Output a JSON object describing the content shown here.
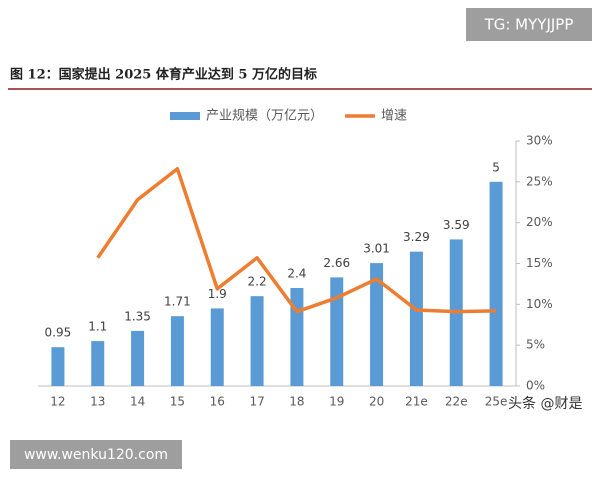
{
  "chart_data": {
    "type": "bar_line",
    "title": "图 12：国家提出 2025 体育产业达到 5 万亿的目标",
    "categories": [
      "12",
      "13",
      "14",
      "15",
      "16",
      "17",
      "18",
      "19",
      "20",
      "21e",
      "22e",
      "25e"
    ],
    "series": [
      {
        "name": "产业规模（万亿元）",
        "type": "bar",
        "color": "#5b9bd5",
        "values": [
          0.95,
          1.1,
          1.35,
          1.71,
          1.9,
          2.2,
          2.4,
          2.66,
          3.01,
          3.29,
          3.59,
          5
        ]
      },
      {
        "name": "增速",
        "type": "line",
        "axis": "y2",
        "color": "#ed7d31",
        "values": [
          null,
          15.7,
          22.8,
          26.6,
          11.9,
          15.7,
          9.1,
          10.8,
          13.1,
          9.3,
          9.1,
          9.2
        ]
      }
    ],
    "ylim": [
      0,
      6
    ],
    "y2lim": [
      0,
      30
    ],
    "y2ticks": [
      {
        "value": 0,
        "label": "0%"
      },
      {
        "value": 5,
        "label": "5%"
      },
      {
        "value": 10,
        "label": "10%"
      },
      {
        "value": 15,
        "label": "15%"
      },
      {
        "value": 20,
        "label": "20%"
      },
      {
        "value": 25,
        "label": "25%"
      },
      {
        "value": 30,
        "label": "30%"
      }
    ],
    "legend": "top"
  },
  "watermarks": [
    "TG: MYYJJPP",
    "头条 @财是",
    "www.wenku120.com"
  ]
}
